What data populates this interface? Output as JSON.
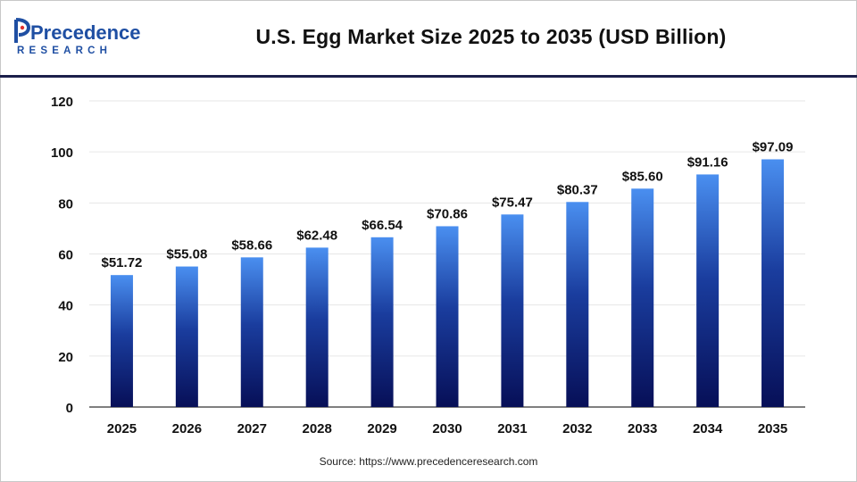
{
  "header": {
    "title": "U.S. Egg Market Size 2025 to 2035 (USD Billion)",
    "logo_line1": "Precedence",
    "logo_line2": "RESEARCH"
  },
  "source": "Source: https://www.precedenceresearch.com",
  "colors": {
    "bar_top": "#4a8ff0",
    "bar_mid": "#1a3d9e",
    "bar_bottom": "#070f57",
    "logo_blue": "#1f4fa3",
    "logo_red": "#e0312d",
    "divider": "#1b1f4a"
  },
  "chart_data": {
    "type": "bar",
    "categories": [
      "2025",
      "2026",
      "2027",
      "2028",
      "2029",
      "2030",
      "2031",
      "2032",
      "2033",
      "2034",
      "2035"
    ],
    "values": [
      51.72,
      55.08,
      58.66,
      62.48,
      66.54,
      70.86,
      75.47,
      80.37,
      85.6,
      91.16,
      97.09
    ],
    "value_labels": [
      "$51.72",
      "$55.08",
      "$58.66",
      "$62.48",
      "$66.54",
      "$70.86",
      "$75.47",
      "$80.37",
      "$85.60",
      "$91.16",
      "$97.09"
    ],
    "title": "U.S. Egg Market Size 2025 to 2035 (USD Billion)",
    "xlabel": "",
    "ylabel": "",
    "ylim": [
      0,
      120
    ],
    "yticks": [
      0,
      20,
      40,
      60,
      80,
      100,
      120
    ],
    "grid": true,
    "legend": "none"
  }
}
